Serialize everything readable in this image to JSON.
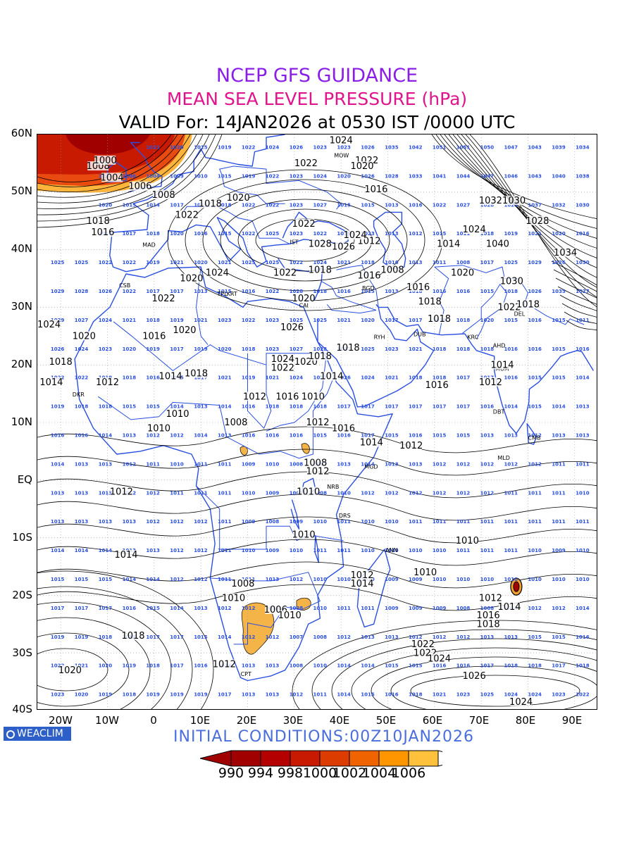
{
  "header": {
    "title": "NCEP GFS GUIDANCE",
    "title_color": "#8a1ee6",
    "subtitle": "MEAN SEA LEVEL PRESSURE (hPa)",
    "subtitle_color": "#e0148c",
    "valid": "VALID For: 14JAN2026 at 0530 IST /0000 UTC"
  },
  "axes": {
    "lat_labels": [
      "60N",
      "50N",
      "40N",
      "30N",
      "20N",
      "10N",
      "EQ",
      "10S",
      "20S",
      "30S",
      "40S"
    ],
    "lon_labels": [
      "20W",
      "10W",
      "0",
      "10E",
      "20E",
      "30E",
      "40E",
      "50E",
      "60E",
      "70E",
      "80E",
      "90E"
    ]
  },
  "map": {
    "boundary_color": "#2a4fe0",
    "contour_color": "#000000",
    "station_value_color": "#2a4fe0",
    "contour_labels": [
      {
        "t": "1024",
        "lat": 58.5,
        "lon": 40.0
      },
      {
        "t": "1022",
        "lat": 55.0,
        "lon": 45.5
      },
      {
        "t": "1020",
        "lat": 54.0,
        "lon": 44.5
      },
      {
        "t": "1022",
        "lat": 54.5,
        "lon": 32.5
      },
      {
        "t": "1016",
        "lat": 50.0,
        "lon": 47.5
      },
      {
        "t": "1008",
        "lat": 54.0,
        "lon": -12.0
      },
      {
        "t": "1000",
        "lat": 55.0,
        "lon": -10.5
      },
      {
        "t": "1004",
        "lat": 52.0,
        "lon": -9.0
      },
      {
        "t": "1006",
        "lat": 50.5,
        "lon": -3.0
      },
      {
        "t": "1008",
        "lat": 49.0,
        "lon": 2.0
      },
      {
        "t": "1018",
        "lat": 47.5,
        "lon": 12.0
      },
      {
        "t": "1020",
        "lat": 48.5,
        "lon": 18.0
      },
      {
        "t": "1022",
        "lat": 45.5,
        "lon": 7.0
      },
      {
        "t": "1018",
        "lat": 44.5,
        "lon": -12.0
      },
      {
        "t": "1016",
        "lat": 42.5,
        "lon": -11.0
      },
      {
        "t": "1022",
        "lat": 44.0,
        "lon": 32.0
      },
      {
        "t": "1028",
        "lat": 40.5,
        "lon": 35.5
      },
      {
        "t": "1026",
        "lat": 40.0,
        "lon": 40.5
      },
      {
        "t": "1012",
        "lat": 41.0,
        "lon": 46.0
      },
      {
        "t": "1024",
        "lat": 42.0,
        "lon": 43.0
      },
      {
        "t": "1024",
        "lat": 35.5,
        "lon": 13.5
      },
      {
        "t": "1020",
        "lat": 34.5,
        "lon": 8.0
      },
      {
        "t": "1022",
        "lat": 35.5,
        "lon": 28.0
      },
      {
        "t": "1018",
        "lat": 36.0,
        "lon": 35.5
      },
      {
        "t": "1016",
        "lat": 35.0,
        "lon": 46.0
      },
      {
        "t": "1008",
        "lat": 36.0,
        "lon": 51.0
      },
      {
        "t": "1016",
        "lat": 33.0,
        "lon": 56.5
      },
      {
        "t": "1020",
        "lat": 35.5,
        "lon": 66.0
      },
      {
        "t": "1014",
        "lat": 40.5,
        "lon": 63.0
      },
      {
        "t": "1024",
        "lat": 43.0,
        "lon": 68.5
      },
      {
        "t": "1040",
        "lat": 40.5,
        "lon": 73.5
      },
      {
        "t": "1032",
        "lat": 48.0,
        "lon": 72.0
      },
      {
        "t": "1030",
        "lat": 48.0,
        "lon": 77.0
      },
      {
        "t": "1028",
        "lat": 44.5,
        "lon": 82.0
      },
      {
        "t": "1034",
        "lat": 39.0,
        "lon": 88.0
      },
      {
        "t": "1030",
        "lat": 34.0,
        "lon": 76.5
      },
      {
        "t": "1022",
        "lat": 29.5,
        "lon": 76.0
      },
      {
        "t": "1018",
        "lat": 30.0,
        "lon": 80.0
      },
      {
        "t": "1018",
        "lat": 30.5,
        "lon": 59.0
      },
      {
        "t": "1020",
        "lat": 31.0,
        "lon": 32.0
      },
      {
        "t": "1026",
        "lat": 26.0,
        "lon": 29.5
      },
      {
        "t": "1022",
        "lat": 31.0,
        "lon": 2.0
      },
      {
        "t": "1020",
        "lat": 25.5,
        "lon": 6.5
      },
      {
        "t": "1016",
        "lat": 24.5,
        "lon": 0.0
      },
      {
        "t": "1024",
        "lat": 26.5,
        "lon": -22.5
      },
      {
        "t": "1020",
        "lat": 24.5,
        "lon": -15.0
      },
      {
        "t": "1018",
        "lat": 20.0,
        "lon": -20.0
      },
      {
        "t": "1014",
        "lat": 16.5,
        "lon": -22.0
      },
      {
        "t": "1012",
        "lat": 16.5,
        "lon": -10.0
      },
      {
        "t": "1014",
        "lat": 17.5,
        "lon": 3.5
      },
      {
        "t": "1018",
        "lat": 18.0,
        "lon": 9.0
      },
      {
        "t": "1024",
        "lat": 20.5,
        "lon": 27.5
      },
      {
        "t": "1022",
        "lat": 19.0,
        "lon": 27.5
      },
      {
        "t": "1020",
        "lat": 20.0,
        "lon": 32.5
      },
      {
        "t": "1018",
        "lat": 21.0,
        "lon": 35.5
      },
      {
        "t": "1018",
        "lat": 22.5,
        "lon": 41.5
      },
      {
        "t": "1014",
        "lat": 17.5,
        "lon": 38.0
      },
      {
        "t": "1012",
        "lat": 14.0,
        "lon": 21.5
      },
      {
        "t": "1016",
        "lat": 14.0,
        "lon": 28.5
      },
      {
        "t": "1010",
        "lat": 14.0,
        "lon": 34.0
      },
      {
        "t": "1012",
        "lat": 9.5,
        "lon": 35.0
      },
      {
        "t": "1016",
        "lat": 8.5,
        "lon": 40.5
      },
      {
        "t": "1008",
        "lat": 9.5,
        "lon": 17.5
      },
      {
        "t": "1010",
        "lat": 11.0,
        "lon": 5.0
      },
      {
        "t": "1010",
        "lat": 8.5,
        "lon": 1.0
      },
      {
        "t": "1014",
        "lat": 6.0,
        "lon": 46.5
      },
      {
        "t": "1012",
        "lat": 5.5,
        "lon": 55.0
      },
      {
        "t": "1016",
        "lat": 16.0,
        "lon": 60.5
      },
      {
        "t": "1012",
        "lat": 16.5,
        "lon": 72.0
      },
      {
        "t": "1014",
        "lat": 19.5,
        "lon": 74.5
      },
      {
        "t": "1018",
        "lat": 27.5,
        "lon": 61.0
      },
      {
        "t": "1008",
        "lat": 2.5,
        "lon": 34.5
      },
      {
        "t": "1012",
        "lat": 1.0,
        "lon": 35.0
      },
      {
        "t": "1010",
        "lat": -2.5,
        "lon": 33.0
      },
      {
        "t": "1012",
        "lat": -2.5,
        "lon": -7.0
      },
      {
        "t": "1010",
        "lat": -10.0,
        "lon": 32.0
      },
      {
        "t": "1014",
        "lat": -13.5,
        "lon": -6.0
      },
      {
        "t": "1010",
        "lat": -11.0,
        "lon": 67.0
      },
      {
        "t": "1010",
        "lat": -16.5,
        "lon": 58.0
      },
      {
        "t": "1012",
        "lat": -17.0,
        "lon": 44.5
      },
      {
        "t": "1014",
        "lat": -18.5,
        "lon": 44.5
      },
      {
        "t": "1008",
        "lat": -18.5,
        "lon": 19.0
      },
      {
        "t": "1010",
        "lat": -21.0,
        "lon": 17.0
      },
      {
        "t": "1006",
        "lat": -23.0,
        "lon": 26.0
      },
      {
        "t": "1010",
        "lat": -24.0,
        "lon": 29.0
      },
      {
        "t": "1012",
        "lat": -21.0,
        "lon": 72.0
      },
      {
        "t": "1014",
        "lat": -22.5,
        "lon": 76.0
      },
      {
        "t": "1016",
        "lat": -24.0,
        "lon": 71.5
      },
      {
        "t": "1018",
        "lat": -25.5,
        "lon": 71.5
      },
      {
        "t": "1018",
        "lat": -27.5,
        "lon": -4.5
      },
      {
        "t": "1020",
        "lat": -33.5,
        "lon": -18.0
      },
      {
        "t": "1012",
        "lat": -32.5,
        "lon": 15.0
      },
      {
        "t": "1022",
        "lat": -29.0,
        "lon": 57.5
      },
      {
        "t": "1022",
        "lat": -30.5,
        "lon": 58.0
      },
      {
        "t": "1024",
        "lat": -31.5,
        "lon": 61.0
      },
      {
        "t": "1026",
        "lat": -34.5,
        "lon": 68.5
      },
      {
        "t": "1024",
        "lat": -39.0,
        "lon": 78.5
      }
    ],
    "stations": [
      {
        "t": "MOW",
        "lat": 56.0,
        "lon": 38.5
      },
      {
        "t": "IST",
        "lat": 41.0,
        "lon": 29.0
      },
      {
        "t": "MAD",
        "lat": 40.5,
        "lon": -2.5
      },
      {
        "t": "CSB",
        "lat": 33.5,
        "lon": -7.5
      },
      {
        "t": "TPL",
        "lat": 32.0,
        "lon": 13.5
      },
      {
        "t": "KRT",
        "lat": 32.0,
        "lon": 15.5
      },
      {
        "t": "CAI",
        "lat": 30.0,
        "lon": 31.0
      },
      {
        "t": "BGD",
        "lat": 33.0,
        "lon": 44.5
      },
      {
        "t": "RYH",
        "lat": 24.5,
        "lon": 47.0
      },
      {
        "t": "DUB",
        "lat": 25.0,
        "lon": 55.5
      },
      {
        "t": "KRC",
        "lat": 24.5,
        "lon": 67.0
      },
      {
        "t": "DEL",
        "lat": 28.5,
        "lon": 77.0
      },
      {
        "t": "AHD",
        "lat": 23.0,
        "lon": 72.5
      },
      {
        "t": "MUM",
        "lat": 19.0,
        "lon": 73.0
      },
      {
        "t": "DBT",
        "lat": 11.5,
        "lon": 72.5
      },
      {
        "t": "CMB",
        "lat": 7.0,
        "lon": 80.0
      },
      {
        "t": "MLD",
        "lat": 3.5,
        "lon": 73.5
      },
      {
        "t": "MGD",
        "lat": 2.0,
        "lon": 45.0
      },
      {
        "t": "NRB",
        "lat": -1.5,
        "lon": 37.0
      },
      {
        "t": "DRS",
        "lat": -6.5,
        "lon": 39.5
      },
      {
        "t": "ANN",
        "lat": -12.5,
        "lon": 49.5
      },
      {
        "t": "CPT",
        "lat": -34.0,
        "lon": 18.5
      },
      {
        "t": "DKR",
        "lat": 14.5,
        "lon": -17.5
      }
    ],
    "station_rows": [
      {
        "lat": 57.5,
        "v": [
          "1021",
          "1020",
          "1015",
          "1019",
          "1022",
          "1024",
          "1026",
          "1023",
          "1023",
          "1026",
          "1035",
          "1042",
          "1051",
          "1051",
          "1050",
          "1047",
          "1043",
          "1039",
          "1034"
        ]
      },
      {
        "lat": 52.5,
        "v": [
          "1007",
          "1006",
          "1004",
          "1009",
          "1010",
          "1015",
          "1019",
          "1022",
          "1023",
          "1024",
          "1020",
          "1026",
          "1028",
          "1033",
          "1041",
          "1044",
          "1047",
          "1046",
          "1043",
          "1040",
          "1038"
        ]
      },
      {
        "lat": 47.5,
        "v": [
          "1020",
          "1015",
          "1014",
          "1017",
          "1015",
          "1018",
          "1022",
          "1022",
          "1023",
          "1027",
          "1015",
          "1015",
          "1013",
          "1016",
          "1022",
          "1027",
          "1028",
          "1029",
          "1037",
          "1032",
          "1030"
        ]
      },
      {
        "lat": 42.5,
        "v": [
          "1018",
          "1017",
          "1018",
          "1020",
          "1016",
          "1015",
          "1022",
          "1025",
          "1023",
          "1022",
          "1019",
          "1023",
          "1013",
          "1012",
          "1015",
          "1011",
          "1018",
          "1019",
          "1021",
          "1020",
          "1016"
        ]
      },
      {
        "lat": 37.5,
        "v": [
          "1025",
          "1025",
          "1022",
          "1022",
          "1019",
          "1021",
          "1020",
          "1021",
          "1025",
          "1025",
          "1022",
          "1024",
          "1021",
          "1018",
          "1016",
          "1013",
          "1011",
          "1008",
          "1017",
          "1025",
          "1029",
          "1026",
          "1030"
        ]
      },
      {
        "lat": 32.5,
        "v": [
          "1029",
          "1028",
          "1026",
          "1022",
          "1017",
          "1017",
          "1013",
          "1015",
          "1016",
          "1022",
          "1028",
          "1018",
          "1016",
          "1015",
          "1013",
          "1018",
          "1016",
          "1016",
          "1015",
          "1018",
          "1026",
          "1035",
          "1027"
        ]
      },
      {
        "lat": 27.5,
        "v": [
          "1029",
          "1027",
          "1024",
          "1021",
          "1018",
          "1019",
          "1021",
          "1023",
          "1022",
          "1023",
          "1025",
          "1025",
          "1021",
          "1020",
          "1017",
          "1017",
          "1016",
          "1018",
          "1020",
          "1015",
          "1016",
          "1015",
          "1011"
        ]
      },
      {
        "lat": 22.5,
        "v": [
          "1026",
          "1024",
          "1023",
          "1020",
          "1019",
          "1017",
          "1019",
          "1020",
          "1018",
          "1023",
          "1027",
          "1028",
          "1027",
          "1025",
          "1023",
          "1021",
          "1018",
          "1018",
          "1018",
          "1016",
          "1016",
          "1015",
          "1016"
        ]
      },
      {
        "lat": 17.5,
        "v": [
          "1022",
          "1022",
          "1019",
          "1018",
          "1016",
          "1015",
          "1017",
          "1021",
          "1019",
          "1021",
          "1024",
          "1027",
          "1026",
          "1024",
          "1021",
          "1018",
          "1018",
          "1017",
          "1017",
          "1016",
          "1015",
          "1015",
          "1014"
        ]
      },
      {
        "lat": 12.5,
        "v": [
          "1019",
          "1018",
          "1018",
          "1015",
          "1015",
          "1014",
          "1013",
          "1014",
          "1016",
          "1018",
          "1018",
          "1018",
          "1017",
          "1017",
          "1017",
          "1017",
          "1017",
          "1017",
          "1016",
          "1014",
          "1015",
          "1014",
          "1013"
        ]
      },
      {
        "lat": 7.5,
        "v": [
          "1016",
          "1016",
          "1014",
          "1013",
          "1012",
          "1012",
          "1014",
          "1013",
          "1016",
          "1016",
          "1016",
          "1015",
          "1016",
          "1017",
          "1015",
          "1016",
          "1015",
          "1015",
          "1013",
          "1013",
          "1012",
          "1013",
          "1013"
        ]
      },
      {
        "lat": 2.5,
        "v": [
          "1014",
          "1013",
          "1013",
          "1012",
          "1011",
          "1010",
          "1011",
          "1011",
          "1009",
          "1010",
          "1008",
          "1007",
          "1013",
          "1014",
          "1013",
          "1013",
          "1012",
          "1012",
          "1012",
          "1012",
          "1012",
          "1011",
          "1011"
        ]
      },
      {
        "lat": -2.5,
        "v": [
          "1013",
          "1013",
          "1013",
          "1012",
          "1012",
          "1011",
          "1011",
          "1011",
          "1010",
          "1009",
          "1007",
          "1008",
          "1010",
          "1012",
          "1012",
          "1012",
          "1012",
          "1012",
          "1012",
          "1011",
          "1011",
          "1011",
          "1010"
        ]
      },
      {
        "lat": -7.5,
        "v": [
          "1013",
          "1013",
          "1013",
          "1013",
          "1012",
          "1012",
          "1012",
          "1011",
          "1009",
          "1008",
          "1009",
          "1010",
          "1011",
          "1010",
          "1010",
          "1011",
          "1011",
          "1011",
          "1011",
          "1011",
          "1011",
          "1011",
          "1011"
        ]
      },
      {
        "lat": -12.5,
        "v": [
          "1014",
          "1014",
          "1014",
          "1013",
          "1013",
          "1012",
          "1012",
          "1011",
          "1010",
          "1009",
          "1010",
          "1011",
          "1011",
          "1010",
          "1010",
          "1010",
          "1010",
          "1011",
          "1011",
          "1011",
          "1010",
          "1009",
          "1010"
        ]
      },
      {
        "lat": -17.5,
        "v": [
          "1015",
          "1015",
          "1015",
          "1014",
          "1014",
          "1012",
          "1012",
          "1011",
          "1011",
          "1013",
          "1012",
          "1010",
          "1010",
          "1010",
          "1009",
          "1009",
          "1010",
          "1010",
          "1010",
          "1010",
          "1010",
          "1010",
          "1010"
        ]
      },
      {
        "lat": -22.5,
        "v": [
          "1017",
          "1017",
          "1017",
          "1016",
          "1015",
          "1014",
          "1013",
          "1012",
          "1012",
          "1010",
          "1008",
          "1010",
          "1011",
          "1011",
          "1009",
          "1009",
          "1009",
          "1008",
          "1008",
          "1010",
          "1012",
          "1012",
          "1014"
        ]
      },
      {
        "lat": -27.5,
        "v": [
          "1019",
          "1019",
          "1018",
          "1018",
          "1017",
          "1017",
          "1015",
          "1014",
          "1012",
          "1012",
          "1007",
          "1008",
          "1012",
          "1013",
          "1013",
          "1012",
          "1012",
          "1012",
          "1013",
          "1013",
          "1015",
          "1015",
          "1016"
        ]
      },
      {
        "lat": -32.5,
        "v": [
          "1022",
          "1021",
          "1020",
          "1019",
          "1018",
          "1017",
          "1016",
          "1014",
          "1013",
          "1013",
          "1008",
          "1010",
          "1014",
          "1014",
          "1015",
          "1015",
          "1016",
          "1016",
          "1017",
          "1018",
          "1018",
          "1017",
          "1018"
        ]
      },
      {
        "lat": -37.5,
        "v": [
          "1023",
          "1020",
          "1019",
          "1018",
          "1019",
          "1019",
          "1019",
          "1017",
          "1013",
          "1013",
          "1012",
          "1011",
          "1014",
          "1015",
          "1016",
          "1018",
          "1021",
          "1023",
          "1025",
          "1024",
          "1024",
          "1023",
          "1022"
        ]
      }
    ]
  },
  "footer": {
    "logo": "WEACLIM",
    "initial_conditions": "INITIAL CONDITIONS:00Z10JAN2026"
  },
  "colorbar": {
    "labels": [
      "990",
      "994",
      "998",
      "1000",
      "1002",
      "1004",
      "1006"
    ],
    "colors": [
      "#a00000",
      "#b40000",
      "#c81a00",
      "#dc3c00",
      "#f06400",
      "#ff9600",
      "#ffc03c"
    ]
  }
}
